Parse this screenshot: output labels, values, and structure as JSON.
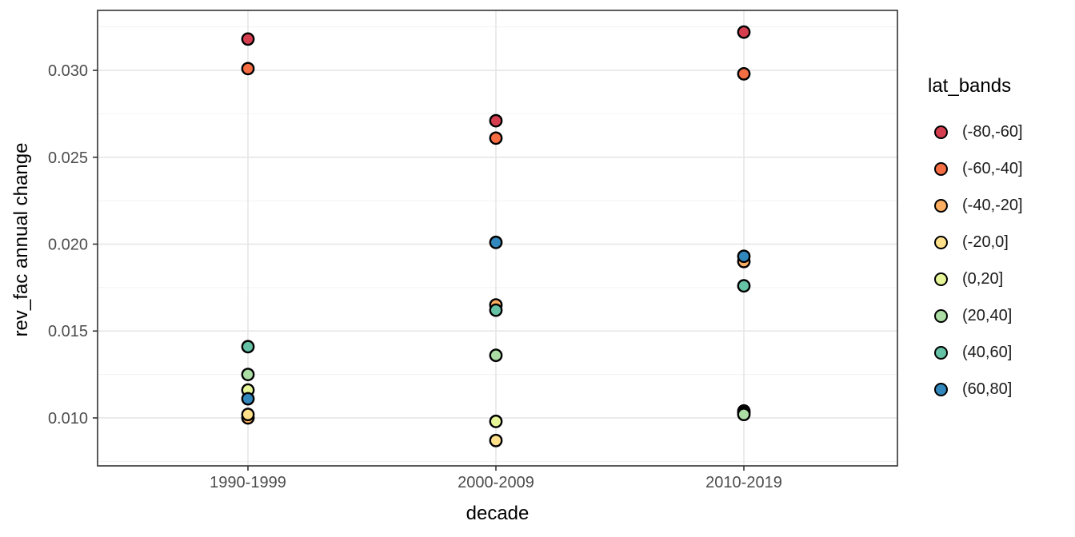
{
  "chart_data": {
    "type": "scatter",
    "title": "",
    "xlabel": "decade",
    "ylabel": "rev_fac annual change",
    "categories": [
      "1990-1999",
      "2000-2009",
      "2010-2019"
    ],
    "y_ticks": [
      0.01,
      0.015,
      0.02,
      0.025,
      0.03
    ],
    "y_tick_labels": [
      "0.010",
      "0.015",
      "0.020",
      "0.025",
      "0.030"
    ],
    "ylim": [
      0.00724,
      0.03345
    ],
    "grid": "major and minor horizontal, major vertical at categories",
    "legend": {
      "title": "lat_bands",
      "position": "right"
    },
    "series": [
      {
        "name": "(-80,-60]",
        "color": "#d53e4f",
        "values": [
          0.0318,
          0.0271,
          0.0322
        ]
      },
      {
        "name": "(-60,-40]",
        "color": "#f46d43",
        "values": [
          0.0301,
          0.0261,
          0.0298
        ]
      },
      {
        "name": "(-40,-20]",
        "color": "#fdae61",
        "values": [
          0.01,
          0.0165,
          0.019
        ]
      },
      {
        "name": "(-20,0]",
        "color": "#fee08b",
        "values": [
          0.0102,
          0.0087,
          0.0104
        ]
      },
      {
        "name": "(0,20]",
        "color": "#e6f598",
        "values": [
          0.0116,
          0.0098,
          0.0103
        ]
      },
      {
        "name": "(20,40]",
        "color": "#abdda4",
        "values": [
          0.0125,
          0.0136,
          0.0102
        ]
      },
      {
        "name": "(40,60]",
        "color": "#66c2a5",
        "values": [
          0.0141,
          0.0162,
          0.0176
        ]
      },
      {
        "name": "(60,80]",
        "color": "#3288bd",
        "values": [
          0.0111,
          0.0201,
          0.0193
        ]
      }
    ]
  },
  "colors": {
    "background": "#ffffff",
    "panel_border": "#333333",
    "grid_major": "#e6e6e6",
    "grid_minor": "#f2f2f2",
    "tick_mark": "#333333",
    "axis_tick_text": "#4d4d4d",
    "axis_title_text": "#000000",
    "point_outline": "#000000"
  }
}
